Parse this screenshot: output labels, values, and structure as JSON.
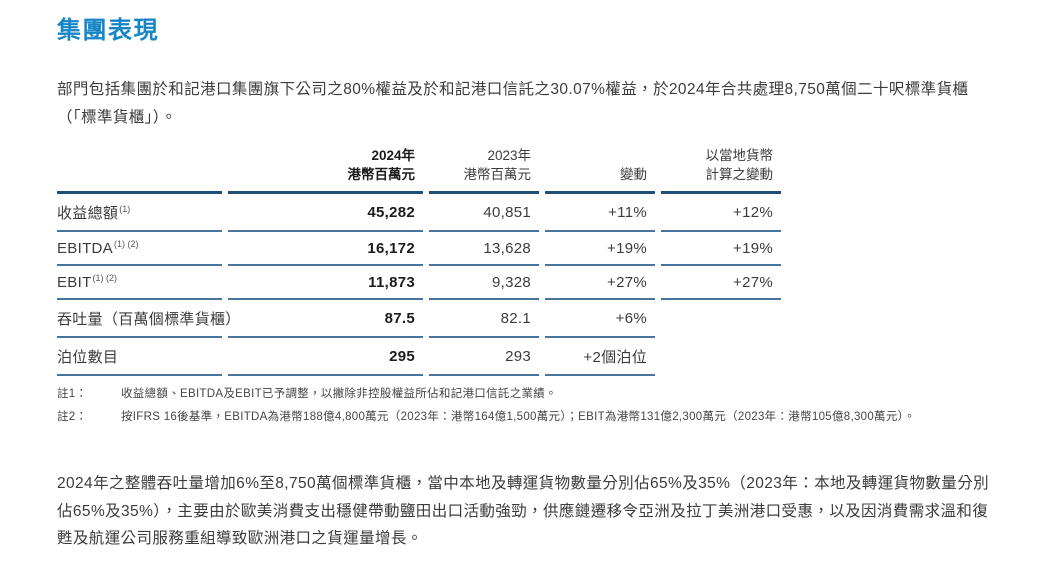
{
  "page": {
    "title": "集團表現",
    "intro": "部門包括集團於和記港口集團旗下公司之80%權益及於和記港口信託之30.07%權益，於2024年合共處理8,750萬個二十呎標準貨櫃（「標準貨櫃」）。",
    "closing": "2024年之整體吞吐量增加6%至8,750萬個標準貨櫃，當中本地及轉運貨物數量分別佔65%及35%（2023年：本地及轉運貨物數量分別佔65%及35%），主要由於歐美消費支出穩健帶動鹽田出口活動強勁，供應鏈遷移令亞洲及拉丁美洲港口受惠，以及因消費需求溫和復甦及航運公司服務重組導致歐洲港口之貨運量增長。"
  },
  "table": {
    "headers": {
      "y2024_line1": "2024年",
      "y2024_line2": "港幣百萬元",
      "y2023_line1": "2023年",
      "y2023_line2": "港幣百萬元",
      "change": "變動",
      "local_line1": "以當地貨幣",
      "local_line2": "計算之變動"
    },
    "rows": [
      {
        "label": "收益總額",
        "sup": "(1)",
        "v2024": "45,282",
        "v2023": "40,851",
        "change": "+11%",
        "local_change": "+12%"
      },
      {
        "label": "EBITDA",
        "sup": "(1) (2)",
        "v2024": "16,172",
        "v2023": "13,628",
        "change": "+19%",
        "local_change": "+19%"
      },
      {
        "label": "EBIT",
        "sup": "(1) (2)",
        "v2024": "11,873",
        "v2023": "9,328",
        "change": "+27%",
        "local_change": "+27%"
      },
      {
        "label": "吞吐量（百萬個標準貨櫃）",
        "sup": "",
        "v2024": "87.5",
        "v2023": "82.1",
        "change": "+6%",
        "local_change": ""
      },
      {
        "label": "泊位數目",
        "sup": "",
        "v2024": "295",
        "v2023": "293",
        "change": "+2個泊位",
        "local_change": ""
      }
    ]
  },
  "footnotes": [
    {
      "label": "註1：",
      "text": "收益總額、EBITDA及EBIT已予調整，以撇除非控股權益所佔和記港口信託之業績。"
    },
    {
      "label": "註2：",
      "text": "按IFRS 16後基準，EBITDA為港幣188億4,800萬元（2023年：港幣164億1,500萬元）；EBIT為港幣131億2,300萬元（2023年：港幣105億8,300萬元）。"
    }
  ],
  "colors": {
    "accent_blue": "#1585c5",
    "table_header_line": "#1f4e79",
    "table_row_line": "#47759f",
    "body_text": "#3c3c3c"
  }
}
